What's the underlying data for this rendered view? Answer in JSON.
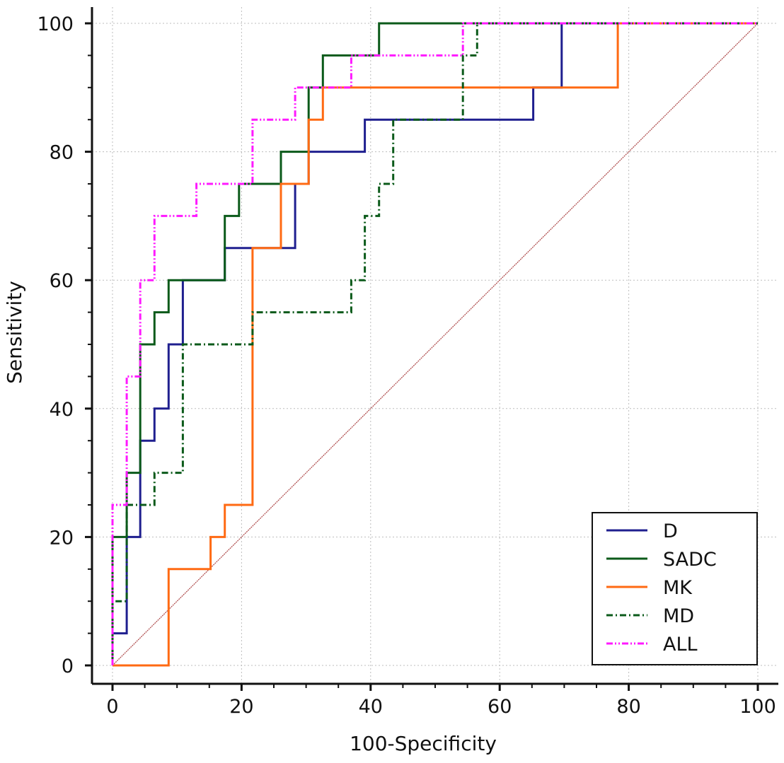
{
  "chart_data": {
    "type": "line",
    "xlabel": "100-Specificity",
    "ylabel": "Sensitivity",
    "xlim": [
      0,
      100
    ],
    "ylim": [
      0,
      100
    ],
    "xticks": [
      "0",
      "20",
      "40",
      "60",
      "80",
      "100"
    ],
    "yticks": [
      "0",
      "20",
      "40",
      "60",
      "80",
      "100"
    ],
    "grid": true,
    "legend_position": "bottom-right",
    "series": [
      {
        "name": "D",
        "color": "#1f1f8f",
        "style": "solid",
        "x": [
          0,
          0,
          2.2,
          2.2,
          4.3,
          4.3,
          6.5,
          6.5,
          8.7,
          8.7,
          10.9,
          10.9,
          17.4,
          17.4,
          28.3,
          28.3,
          30.4,
          30.4,
          39.1,
          39.1,
          65.2,
          65.2,
          69.6,
          69.6,
          100
        ],
        "y": [
          0,
          5,
          5,
          20,
          20,
          35,
          35,
          40,
          40,
          50,
          50,
          60,
          60,
          65,
          65,
          75,
          75,
          80,
          80,
          85,
          85,
          90,
          90,
          100,
          100
        ]
      },
      {
        "name": "SADC",
        "color": "#0b5a1a",
        "style": "solid",
        "x": [
          0,
          0,
          2.2,
          2.2,
          4.3,
          4.3,
          6.5,
          6.5,
          8.7,
          8.7,
          17.4,
          17.4,
          19.6,
          19.6,
          26.1,
          26.1,
          30.4,
          30.4,
          32.6,
          32.6,
          41.3,
          41.3,
          100
        ],
        "y": [
          0,
          20,
          20,
          30,
          30,
          50,
          50,
          55,
          55,
          60,
          60,
          70,
          70,
          75,
          75,
          80,
          80,
          90,
          90,
          95,
          95,
          100,
          100
        ]
      },
      {
        "name": "MK",
        "color": "#ff6a13",
        "style": "solid",
        "x": [
          0,
          8.7,
          8.7,
          15.2,
          15.2,
          17.4,
          17.4,
          21.7,
          21.7,
          26.1,
          26.1,
          30.4,
          30.4,
          32.6,
          32.6,
          78.3,
          78.3,
          100
        ],
        "y": [
          0,
          0,
          15,
          15,
          20,
          20,
          25,
          25,
          65,
          65,
          75,
          75,
          85,
          85,
          90,
          90,
          100,
          100
        ]
      },
      {
        "name": "MD",
        "color": "#0b5a1a",
        "style": "dashdot",
        "x": [
          0,
          0,
          2.2,
          2.2,
          6.5,
          6.5,
          10.9,
          10.9,
          21.7,
          21.7,
          37.0,
          37.0,
          39.1,
          39.1,
          41.3,
          41.3,
          43.5,
          43.5,
          54.3,
          54.3,
          56.5,
          56.5,
          100
        ],
        "y": [
          0,
          10,
          10,
          25,
          25,
          30,
          30,
          50,
          50,
          55,
          55,
          60,
          60,
          70,
          70,
          75,
          75,
          85,
          85,
          95,
          95,
          100,
          100
        ]
      },
      {
        "name": "ALL",
        "color": "#ff19ff",
        "style": "dashdotdot",
        "x": [
          0,
          0,
          2.2,
          2.2,
          4.3,
          4.3,
          6.5,
          6.5,
          13.0,
          13.0,
          21.7,
          21.7,
          28.3,
          28.3,
          37.0,
          37.0,
          54.3,
          54.3,
          100
        ],
        "y": [
          0,
          25,
          25,
          45,
          45,
          60,
          60,
          70,
          70,
          75,
          75,
          85,
          85,
          90,
          90,
          95,
          95,
          100,
          100
        ]
      }
    ],
    "reference_line": {
      "x": [
        0,
        100
      ],
      "y": [
        0,
        100
      ],
      "color": "#b05050"
    }
  }
}
